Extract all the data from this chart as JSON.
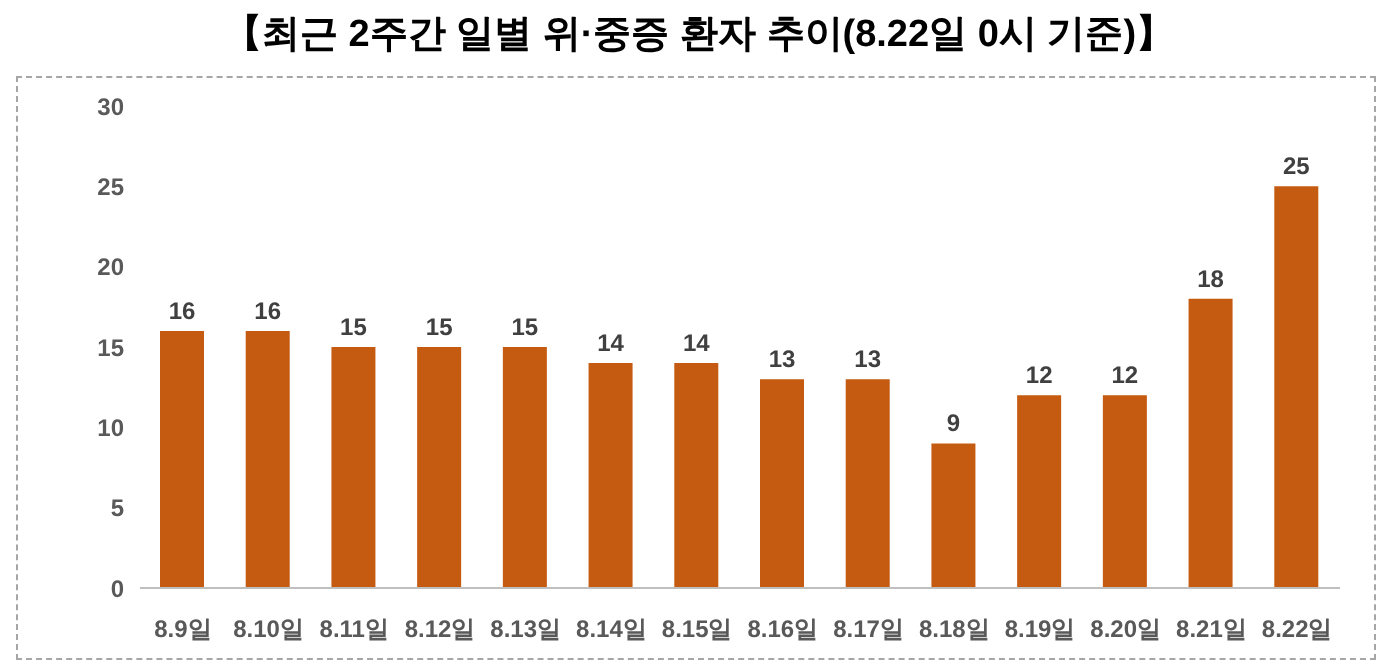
{
  "chart_data": {
    "type": "bar",
    "title": "【최근 2주간 일별 위·중증 환자 추이(8.22일 0시 기준)】",
    "categories": [
      "8.9일",
      "8.10일",
      "8.11일",
      "8.12일",
      "8.13일",
      "8.14일",
      "8.15일",
      "8.16일",
      "8.17일",
      "8.18일",
      "8.19일",
      "8.20일",
      "8.21일",
      "8.22일"
    ],
    "values": [
      16,
      16,
      15,
      15,
      15,
      14,
      14,
      13,
      13,
      9,
      12,
      12,
      18,
      25
    ],
    "color": "#c55a11",
    "ylim": [
      0,
      30
    ],
    "yticks": [
      0,
      5,
      10,
      15,
      20,
      25,
      30
    ],
    "grid": false,
    "data_labels": true
  }
}
